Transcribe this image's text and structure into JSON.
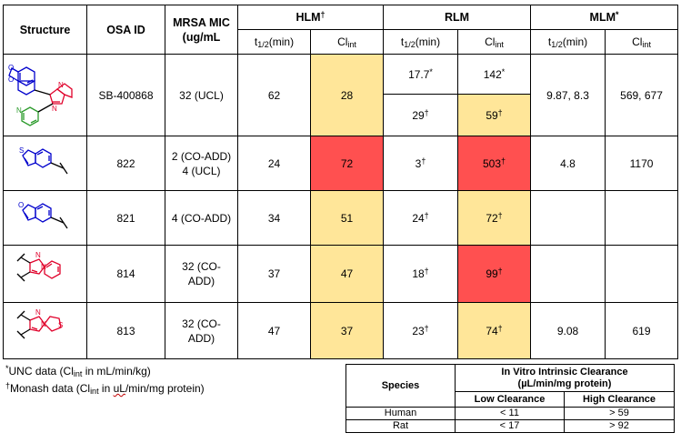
{
  "headers": {
    "structure": "Structure",
    "osa_id": "OSA ID",
    "mic_line1": "MRSA MIC",
    "mic_line2": "(ug/mL",
    "hlm": "HLM",
    "hlm_mark": "†",
    "rlm": "RLM",
    "mlm": "MLM",
    "mlm_mark": "*",
    "t_half": "t",
    "t_half_sub": "1/2",
    "t_half_unit": "(min)",
    "cl": "Cl",
    "cl_sub": "int"
  },
  "rows": [
    {
      "osa": "SB-400868",
      "mic": "32 (UCL)",
      "hlm_t": "62",
      "hlm_cl": "28",
      "rlm_t1": "17.7",
      "rlm_t1_mark": "*",
      "rlm_cl1": "142",
      "rlm_cl1_mark": "*",
      "rlm_t2": "29",
      "rlm_t2_mark": "†",
      "rlm_cl2": "59",
      "rlm_cl2_mark": "†",
      "mlm_t": "9.87, 8.3",
      "mlm_cl": "569, 677"
    },
    {
      "osa": "822",
      "mic_line1": "2 (CO-ADD)",
      "mic_line2": "4 (UCL)",
      "hlm_t": "24",
      "hlm_cl": "72",
      "rlm_t": "3",
      "rlm_t_mark": "†",
      "rlm_cl": "503",
      "rlm_cl_mark": "†",
      "mlm_t": "4.8",
      "mlm_cl": "1170"
    },
    {
      "osa": "821",
      "mic": "4 (CO-ADD)",
      "hlm_t": "34",
      "hlm_cl": "51",
      "rlm_t": "24",
      "rlm_t_mark": "†",
      "rlm_cl": "72",
      "rlm_cl_mark": "†",
      "mlm_t": "",
      "mlm_cl": ""
    },
    {
      "osa": "814",
      "mic_line1": "32 (CO-",
      "mic_line2": "ADD)",
      "hlm_t": "37",
      "hlm_cl": "47",
      "rlm_t": "18",
      "rlm_t_mark": "†",
      "rlm_cl": "99",
      "rlm_cl_mark": "†",
      "mlm_t": "",
      "mlm_cl": ""
    },
    {
      "osa": "813",
      "mic_line1": "32 (CO-",
      "mic_line2": "ADD)",
      "hlm_t": "47",
      "hlm_cl": "37",
      "rlm_t": "23",
      "rlm_t_mark": "†",
      "rlm_cl": "74",
      "rlm_cl_mark": "†",
      "mlm_t": "9.08",
      "mlm_cl": "619"
    }
  ],
  "notes": {
    "unc_mark": "*",
    "unc_a": "UNC data (Cl",
    "unc_sub": "int",
    "unc_b": " in mL/min/kg)",
    "mon_mark": "†",
    "mon_a": "Monash data (Cl",
    "mon_sub": "int",
    "mon_b": " in ",
    "mon_wavy": "uL",
    "mon_c": "/min/mg protein)"
  },
  "clearance": {
    "title_line1": "In Vitro Intrinsic Clearance",
    "title_line2": "(µL/min/mg protein)",
    "species": "Species",
    "low": "Low Clearance",
    "high": "High Clearance",
    "rows": [
      {
        "species": "Human",
        "low": "< 11",
        "high": "> 59"
      },
      {
        "species": "Rat",
        "low": "< 17",
        "high": "> 92"
      }
    ]
  },
  "colors": {
    "low_cl": "#ffe699",
    "high_cl": "#ff5050",
    "ring_a": "#0000cc",
    "ring_b": "#e0002a",
    "ring_c": "#2a9a2a"
  }
}
